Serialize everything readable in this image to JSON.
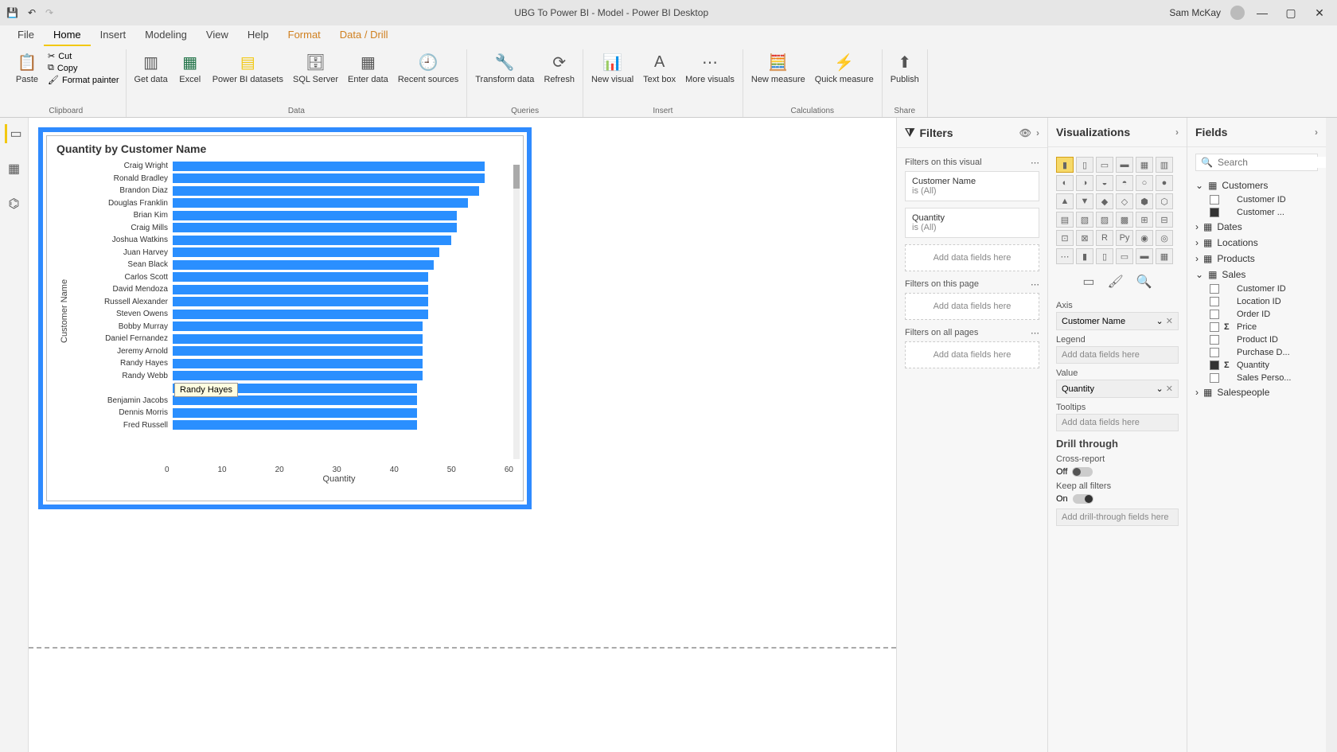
{
  "titlebar": {
    "title": "UBG To Power BI - Model - Power BI Desktop",
    "user": "Sam McKay"
  },
  "menu": {
    "tabs": [
      "File",
      "Home",
      "Insert",
      "Modeling",
      "View",
      "Help",
      "Format",
      "Data / Drill"
    ],
    "active": "Home",
    "orange": [
      "Format",
      "Data / Drill"
    ]
  },
  "ribbon": {
    "clipboard": {
      "paste": "Paste",
      "cut": "Cut",
      "copy": "Copy",
      "painter": "Format painter",
      "label": "Clipboard"
    },
    "data": {
      "get": "Get\ndata",
      "excel": "Excel",
      "pbi": "Power BI\ndatasets",
      "sql": "SQL\nServer",
      "enter": "Enter\ndata",
      "recent": "Recent\nsources",
      "label": "Data"
    },
    "queries": {
      "transform": "Transform\ndata",
      "refresh": "Refresh",
      "label": "Queries"
    },
    "insert": {
      "newvisual": "New\nvisual",
      "textbox": "Text\nbox",
      "more": "More\nvisuals",
      "label": "Insert"
    },
    "calc": {
      "newmeasure": "New\nmeasure",
      "quick": "Quick\nmeasure",
      "label": "Calculations"
    },
    "share": {
      "publish": "Publish",
      "label": "Share"
    }
  },
  "chart": {
    "title": "Quantity by Customer Name",
    "ylabel": "Customer Name",
    "xlabel": "Quantity",
    "xticks": [
      "0",
      "10",
      "20",
      "30",
      "40",
      "50",
      "60"
    ],
    "xmax": 60,
    "bar_color": "#2a8fff",
    "rows": [
      {
        "name": "Craig Wright",
        "value": 55
      },
      {
        "name": "Ronald Bradley",
        "value": 55
      },
      {
        "name": "Brandon Diaz",
        "value": 54
      },
      {
        "name": "Douglas Franklin",
        "value": 52
      },
      {
        "name": "Brian Kim",
        "value": 50
      },
      {
        "name": "Craig Mills",
        "value": 50
      },
      {
        "name": "Joshua Watkins",
        "value": 49
      },
      {
        "name": "Juan Harvey",
        "value": 47
      },
      {
        "name": "Sean Black",
        "value": 46
      },
      {
        "name": "Carlos Scott",
        "value": 45
      },
      {
        "name": "David Mendoza",
        "value": 45
      },
      {
        "name": "Russell Alexander",
        "value": 45
      },
      {
        "name": "Steven Owens",
        "value": 45
      },
      {
        "name": "Bobby Murray",
        "value": 44
      },
      {
        "name": "Daniel Fernandez",
        "value": 44
      },
      {
        "name": "Jeremy Arnold",
        "value": 44
      },
      {
        "name": "Randy Hayes",
        "value": 44
      },
      {
        "name": "Randy Webb",
        "value": 44
      },
      {
        "name": "",
        "value": 43
      },
      {
        "name": "Benjamin Jacobs",
        "value": 43
      },
      {
        "name": "Dennis Morris",
        "value": 43
      },
      {
        "name": "Fred Russell",
        "value": 43
      }
    ],
    "tooltip": "Randy Hayes"
  },
  "filters": {
    "title": "Filters",
    "onvisual": "Filters on this visual",
    "cards": [
      {
        "name": "Customer Name",
        "value": "is (All)"
      },
      {
        "name": "Quantity",
        "value": "is (All)"
      }
    ],
    "onpage": "Filters on this page",
    "onall": "Filters on all pages",
    "adddata": "Add data fields here"
  },
  "viz": {
    "title": "Visualizations",
    "axis_label": "Axis",
    "axis_field": "Customer Name",
    "legend_label": "Legend",
    "value_label": "Value",
    "value_field": "Quantity",
    "tooltips_label": "Tooltips",
    "adddata": "Add data fields here",
    "drill_title": "Drill through",
    "crossreport": "Cross-report",
    "off": "Off",
    "keepall": "Keep all filters",
    "on": "On",
    "adddrill": "Add drill-through fields here"
  },
  "fields": {
    "title": "Fields",
    "search_placeholder": "Search",
    "tables": [
      {
        "name": "Customers",
        "expanded": true,
        "cols": [
          {
            "name": "Customer ID",
            "checked": false,
            "sigma": false
          },
          {
            "name": "Customer ...",
            "checked": true,
            "sigma": false
          }
        ]
      },
      {
        "name": "Dates",
        "expanded": false,
        "cols": []
      },
      {
        "name": "Locations",
        "expanded": false,
        "cols": []
      },
      {
        "name": "Products",
        "expanded": false,
        "cols": []
      },
      {
        "name": "Sales",
        "expanded": true,
        "cols": [
          {
            "name": "Customer ID",
            "checked": false,
            "sigma": false
          },
          {
            "name": "Location ID",
            "checked": false,
            "sigma": false
          },
          {
            "name": "Order ID",
            "checked": false,
            "sigma": false
          },
          {
            "name": "Price",
            "checked": false,
            "sigma": true
          },
          {
            "name": "Product ID",
            "checked": false,
            "sigma": false
          },
          {
            "name": "Purchase D...",
            "checked": false,
            "sigma": false
          },
          {
            "name": "Quantity",
            "checked": true,
            "sigma": true
          },
          {
            "name": "Sales Perso...",
            "checked": false,
            "sigma": false
          }
        ]
      },
      {
        "name": "Salespeople",
        "expanded": false,
        "cols": []
      }
    ]
  }
}
